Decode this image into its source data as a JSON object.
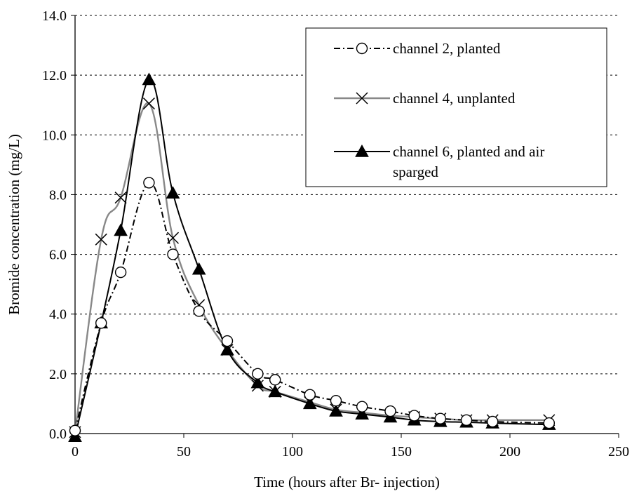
{
  "chart_data": {
    "type": "line",
    "title": "",
    "xlabel": "Time (hours after Br- injection)",
    "ylabel": "Bromide concentration (mg/L)",
    "xlim": [
      0,
      250
    ],
    "ylim": [
      0,
      14
    ],
    "x_ticks": [
      "0",
      "50",
      "100",
      "150",
      "200",
      "250"
    ],
    "y_ticks": [
      "0.0",
      "2.0",
      "4.0",
      "6.0",
      "8.0",
      "10.0",
      "12.0",
      "14.0"
    ],
    "grid": "horizontal dashed",
    "legend_position": "top-right",
    "series": [
      {
        "name": "channel 2, planted",
        "legend_lines": [
          "channel 2, planted"
        ],
        "color": "#000000",
        "line_style": "dash-dot",
        "marker": "open-circle",
        "x": [
          0,
          12,
          21,
          34,
          45,
          57,
          70,
          84,
          92,
          108,
          120,
          132,
          145,
          156,
          168,
          180,
          192,
          218
        ],
        "y": [
          0.1,
          3.7,
          5.4,
          8.4,
          6.0,
          4.1,
          3.1,
          2.0,
          1.8,
          1.3,
          1.1,
          0.9,
          0.75,
          0.6,
          0.5,
          0.45,
          0.4,
          0.35
        ]
      },
      {
        "name": "channel 4, unplanted",
        "legend_lines": [
          "channel 4, unplanted"
        ],
        "color": "#888888",
        "line_style": "solid",
        "marker": "x",
        "x": [
          0,
          12,
          21,
          34,
          45,
          57,
          70,
          84,
          92,
          108,
          120,
          132,
          145,
          156,
          168,
          180,
          192,
          218
        ],
        "y": [
          0.05,
          6.5,
          7.9,
          11.05,
          6.55,
          4.3,
          2.8,
          1.6,
          1.4,
          1.05,
          0.8,
          0.7,
          0.6,
          0.55,
          0.5,
          0.45,
          0.45,
          0.45
        ]
      },
      {
        "name": "channel 6, planted and air sparged",
        "legend_lines": [
          "channel 6, planted and air",
          "sparged"
        ],
        "color": "#000000",
        "line_style": "solid",
        "marker": "filled-triangle",
        "x": [
          0,
          12,
          21,
          34,
          45,
          57,
          70,
          84,
          92,
          108,
          120,
          132,
          145,
          156,
          168,
          180,
          192,
          218
        ],
        "y": [
          -0.1,
          3.7,
          6.8,
          11.85,
          8.05,
          5.5,
          2.8,
          1.7,
          1.4,
          1.0,
          0.75,
          0.65,
          0.55,
          0.45,
          0.4,
          0.38,
          0.35,
          0.3
        ]
      }
    ]
  }
}
